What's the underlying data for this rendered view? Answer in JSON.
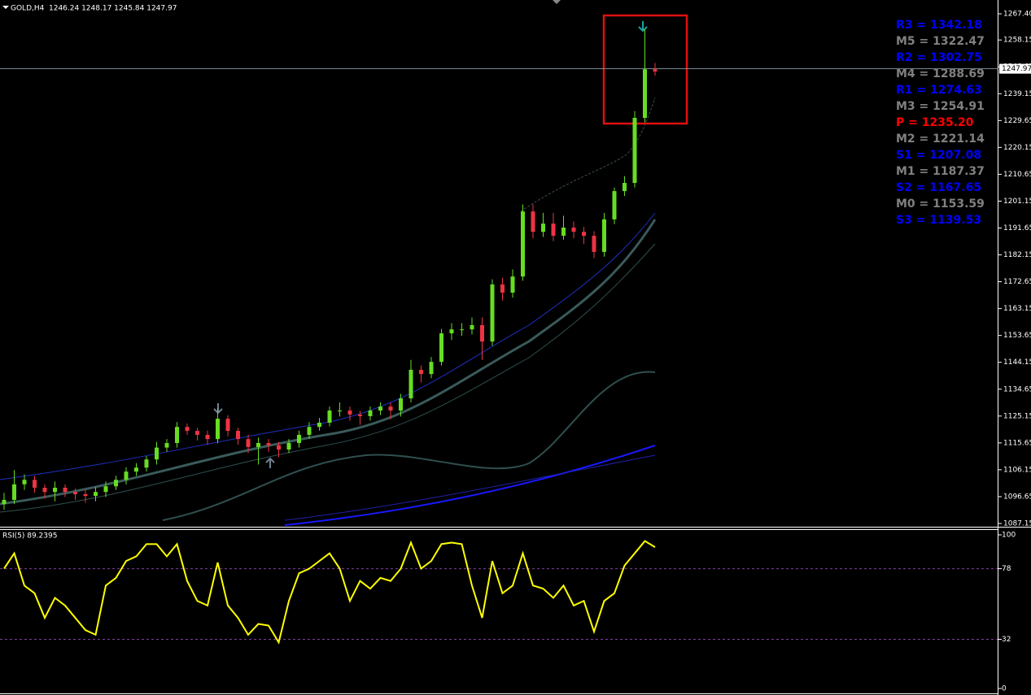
{
  "header": {
    "symbol": "GOLD,H4",
    "ohlc": "1246.24 1248.17 1245.84 1247.97"
  },
  "price_axis": {
    "lim": [
      1087.15,
      1267.4
    ],
    "ticks": [
      {
        "value": 1267.4,
        "label": "1267.40"
      },
      1258.15,
      1248.65,
      1239.15,
      1229.65,
      1220.15,
      1210.65,
      1201.15,
      1191.65,
      1182.15,
      1172.65,
      1163.15,
      1153.65,
      1144.15,
      1134.65,
      1125.15,
      1115.65,
      1106.15,
      1096.65,
      1087.15
    ],
    "current": 1247.97
  },
  "candles": [
    [
      1094,
      1098,
      1092,
      1095.5
    ],
    [
      1095.5,
      1106,
      1094,
      1101
    ],
    [
      1101,
      1104.5,
      1099,
      1102.6
    ],
    [
      1102.6,
      1104,
      1098,
      1099.8
    ],
    [
      1099.8,
      1101,
      1096,
      1098.3
    ],
    [
      1098.3,
      1102,
      1095,
      1099.8
    ],
    [
      1099.8,
      1101,
      1096.5,
      1098.3
    ],
    [
      1098.3,
      1099.5,
      1095.5,
      1097.5
    ],
    [
      1097.5,
      1099,
      1094.5,
      1096.9
    ],
    [
      1096.9,
      1100,
      1095,
      1098.3
    ],
    [
      1098.3,
      1102,
      1096.5,
      1100.3
    ],
    [
      1100.3,
      1104,
      1099,
      1102.6
    ],
    [
      1102.6,
      1107,
      1101,
      1105.5
    ],
    [
      1105.5,
      1108.5,
      1104,
      1106.9
    ],
    [
      1106.9,
      1111,
      1105.5,
      1109.8
    ],
    [
      1109.8,
      1116,
      1108,
      1114
    ],
    [
      1114,
      1117,
      1112.5,
      1115.6
    ],
    [
      1115.6,
      1123,
      1114,
      1121.3
    ],
    [
      1121.3,
      1122.5,
      1118.5,
      1119.9
    ],
    [
      1119.9,
      1121,
      1116.5,
      1118.5
    ],
    [
      1118.5,
      1120,
      1115,
      1117
    ],
    [
      1117,
      1128,
      1115.5,
      1124.2
    ],
    [
      1124.2,
      1125.5,
      1118,
      1119.9
    ],
    [
      1119.9,
      1121,
      1115,
      1117
    ],
    [
      1117,
      1118.5,
      1112,
      1114.2
    ],
    [
      1114.2,
      1117.5,
      1108,
      1115.6
    ],
    [
      1115.6,
      1117,
      1112.5,
      1114.8
    ],
    [
      1114.8,
      1116,
      1110.5,
      1113.3
    ],
    [
      1113.3,
      1117,
      1112,
      1115.6
    ],
    [
      1115.6,
      1120,
      1114,
      1118.5
    ],
    [
      1118.5,
      1123,
      1117,
      1121.3
    ],
    [
      1121.3,
      1124.5,
      1120,
      1122.8
    ],
    [
      1122.8,
      1128.5,
      1121.5,
      1127.1
    ],
    [
      1127.1,
      1130,
      1125,
      1127.1
    ],
    [
      1127.1,
      1128.5,
      1123.5,
      1125.7
    ],
    [
      1125.7,
      1127,
      1122,
      1125.1
    ],
    [
      1125.1,
      1128.5,
      1123.5,
      1127.1
    ],
    [
      1127.1,
      1130,
      1125.5,
      1128.5
    ],
    [
      1128.5,
      1130,
      1124,
      1127.1
    ],
    [
      1127.1,
      1133,
      1125,
      1131.4
    ],
    [
      1131.4,
      1145,
      1130,
      1141.5
    ],
    [
      1141.5,
      1143,
      1137,
      1140
    ],
    [
      1140,
      1146,
      1138.5,
      1144.3
    ],
    [
      1144.3,
      1156,
      1143,
      1154.4
    ],
    [
      1154.4,
      1158,
      1152,
      1155.8
    ],
    [
      1155.8,
      1158,
      1153.5,
      1155.8
    ],
    [
      1155.8,
      1160,
      1154,
      1157.3
    ],
    [
      1157.3,
      1160,
      1145,
      1151.5
    ],
    [
      1151.5,
      1173.5,
      1150,
      1171.7
    ],
    [
      1171.7,
      1174,
      1166,
      1168.8
    ],
    [
      1168.8,
      1177,
      1167,
      1174.5
    ],
    [
      1174.5,
      1200,
      1173,
      1197.5
    ],
    [
      1197.5,
      1200,
      1188,
      1190.3
    ],
    [
      1190.3,
      1197,
      1188.5,
      1193.2
    ],
    [
      1193.2,
      1197,
      1187,
      1188.9
    ],
    [
      1188.9,
      1196,
      1187.5,
      1191.8
    ],
    [
      1191.8,
      1194,
      1188,
      1190.3
    ],
    [
      1190.3,
      1192,
      1186,
      1188.9
    ],
    [
      1188.9,
      1190.5,
      1181,
      1183.2
    ],
    [
      1183.2,
      1197,
      1181.5,
      1194.7
    ],
    [
      1194.7,
      1206,
      1193,
      1204.7
    ],
    [
      1204.7,
      1210,
      1203,
      1207.6
    ],
    [
      1207.6,
      1233,
      1206,
      1230.6
    ],
    [
      1230.6,
      1262,
      1229,
      1247.8
    ],
    [
      1247.8,
      1250,
      1245.5,
      1247
    ]
  ],
  "pivots": [
    {
      "label": "R3 = 1342.18",
      "color": "#0000ff"
    },
    {
      "label": "M5 = 1322.47",
      "color": "#808080"
    },
    {
      "label": "R2 = 1302.75",
      "color": "#0000ff"
    },
    {
      "label": "M4 = 1288.69",
      "color": "#808080"
    },
    {
      "label": "R1 = 1274.63",
      "color": "#0000ff"
    },
    {
      "label": "M3 = 1254.91",
      "color": "#808080"
    },
    {
      "label": "P   = 1235.20",
      "color": "#ff0000"
    },
    {
      "label": "M2 = 1221.14",
      "color": "#808080"
    },
    {
      "label": "S1 = 1207.08",
      "color": "#0000ff"
    },
    {
      "label": "M1 = 1187.37",
      "color": "#808080"
    },
    {
      "label": "S2 = 1167.65",
      "color": "#0000ff"
    },
    {
      "label": "M0 = 1153.59",
      "color": "#808080"
    },
    {
      "label": "S3 = 1139.53",
      "color": "#0000ff"
    }
  ],
  "rsi": {
    "label": "RSI(5) 89.2395",
    "lim": [
      0,
      100
    ],
    "ticks": [
      100,
      78,
      32,
      0
    ],
    "levels": [
      78,
      32
    ],
    "color": "#ffff00",
    "values": [
      78,
      88,
      67,
      62,
      46,
      59,
      54,
      46,
      38,
      35,
      67,
      72,
      83,
      86,
      94,
      94,
      86,
      94,
      70,
      57,
      54,
      82,
      54,
      46,
      35,
      42,
      41,
      30,
      57,
      75,
      78,
      83,
      88,
      78,
      57,
      70,
      65,
      72,
      70,
      78,
      95,
      78,
      83,
      94,
      95,
      94,
      67,
      46,
      83,
      62,
      67,
      88,
      67,
      65,
      59,
      67,
      54,
      57,
      37,
      57,
      62,
      80,
      88,
      96,
      92
    ]
  }
}
